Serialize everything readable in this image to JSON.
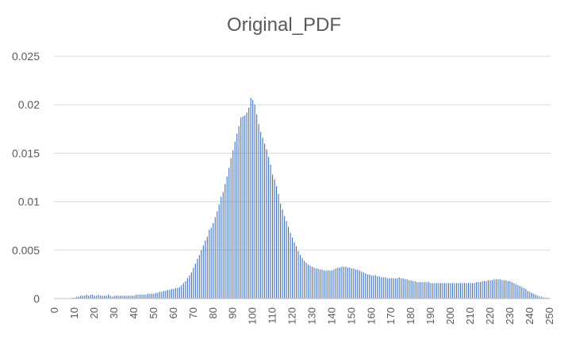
{
  "chart_data": {
    "type": "bar",
    "title": "Original_PDF",
    "xlabel": "",
    "ylabel": "",
    "ylim": [
      0,
      0.025
    ],
    "yticks": [
      "0",
      "0.005",
      "0.01",
      "0.015",
      "0.02",
      "0.025"
    ],
    "xticks": [
      "0",
      "10",
      "20",
      "30",
      "40",
      "50",
      "60",
      "70",
      "80",
      "90",
      "100",
      "110",
      "120",
      "130",
      "140",
      "150",
      "160",
      "170",
      "180",
      "190",
      "200",
      "210",
      "220",
      "230",
      "240",
      "250"
    ],
    "grid": true,
    "legend": "none",
    "bar_color": "#4472c4",
    "categories_range": [
      0,
      255
    ],
    "values": [
      0.0,
      0.0,
      0.0,
      0.0,
      0.0,
      0.0,
      0.0,
      0.0,
      0.0,
      0.0001,
      0.0001,
      0.0002,
      0.0002,
      0.0003,
      0.0003,
      0.0003,
      0.0004,
      0.0003,
      0.0004,
      0.0004,
      0.0003,
      0.0003,
      0.0004,
      0.0003,
      0.0003,
      0.0003,
      0.0003,
      0.0004,
      0.0003,
      0.0002,
      0.0003,
      0.0003,
      0.0003,
      0.0003,
      0.0003,
      0.0003,
      0.0003,
      0.0003,
      0.0003,
      0.0003,
      0.0003,
      0.0004,
      0.0004,
      0.0004,
      0.0004,
      0.0004,
      0.0004,
      0.0005,
      0.0005,
      0.0005,
      0.0005,
      0.0006,
      0.0006,
      0.0007,
      0.0007,
      0.0008,
      0.0008,
      0.0009,
      0.0009,
      0.001,
      0.001,
      0.0011,
      0.0011,
      0.0012,
      0.0014,
      0.0016,
      0.0018,
      0.0021,
      0.0024,
      0.0027,
      0.0032,
      0.0036,
      0.0041,
      0.0045,
      0.005,
      0.0055,
      0.006,
      0.0064,
      0.0071,
      0.0073,
      0.0078,
      0.0084,
      0.009,
      0.0097,
      0.0105,
      0.011,
      0.0118,
      0.0126,
      0.0135,
      0.0145,
      0.0153,
      0.0162,
      0.017,
      0.0178,
      0.0187,
      0.0188,
      0.0189,
      0.0192,
      0.0197,
      0.0207,
      0.0205,
      0.02,
      0.019,
      0.018,
      0.0172,
      0.0166,
      0.016,
      0.0154,
      0.0146,
      0.0138,
      0.0128,
      0.0123,
      0.0116,
      0.0108,
      0.0098,
      0.0092,
      0.0085,
      0.008,
      0.0074,
      0.0068,
      0.0063,
      0.0058,
      0.0054,
      0.0049,
      0.0045,
      0.0042,
      0.0039,
      0.0037,
      0.0035,
      0.0034,
      0.0033,
      0.0032,
      0.0031,
      0.0031,
      0.003,
      0.003,
      0.0029,
      0.0029,
      0.0029,
      0.0029,
      0.0029,
      0.003,
      0.0031,
      0.0032,
      0.0032,
      0.0033,
      0.0033,
      0.0033,
      0.0032,
      0.0032,
      0.0031,
      0.0031,
      0.003,
      0.003,
      0.0029,
      0.0028,
      0.0027,
      0.0026,
      0.0025,
      0.0025,
      0.0024,
      0.0024,
      0.0024,
      0.0023,
      0.0023,
      0.0022,
      0.0022,
      0.0022,
      0.0021,
      0.0021,
      0.0021,
      0.0021,
      0.0021,
      0.0021,
      0.0022,
      0.0021,
      0.0021,
      0.002,
      0.002,
      0.0019,
      0.0019,
      0.0018,
      0.0018,
      0.0017,
      0.0017,
      0.0017,
      0.0017,
      0.0017,
      0.0017,
      0.0017,
      0.0016,
      0.0016,
      0.0016,
      0.0016,
      0.0016,
      0.0016,
      0.0016,
      0.0016,
      0.0016,
      0.0016,
      0.0016,
      0.0016,
      0.0016,
      0.0016,
      0.0016,
      0.0016,
      0.0016,
      0.0016,
      0.0016,
      0.0016,
      0.0016,
      0.0016,
      0.0016,
      0.0017,
      0.0017,
      0.0017,
      0.0018,
      0.0018,
      0.0018,
      0.0019,
      0.0019,
      0.0019,
      0.002,
      0.002,
      0.002,
      0.002,
      0.0019,
      0.0019,
      0.0019,
      0.0018,
      0.0018,
      0.0017,
      0.0016,
      0.0015,
      0.0014,
      0.0013,
      0.0012,
      0.0011,
      0.001,
      0.0008,
      0.0007,
      0.0006,
      0.0005,
      0.0004,
      0.0003,
      0.0002,
      0.0002,
      0.0001,
      0.0001,
      0.0001,
      0.0
    ]
  }
}
